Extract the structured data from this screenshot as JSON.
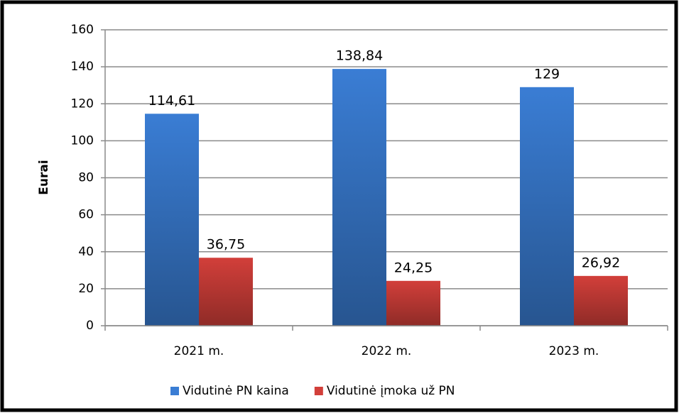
{
  "chart_data": {
    "type": "bar",
    "y_label": "Eurai",
    "categories": [
      "2021 m.",
      "2022 m.",
      "2023 m."
    ],
    "series": [
      {
        "name": "Vidutinė PN kaina",
        "color": "#3a7dd4",
        "values": [
          114.61,
          138.84,
          129
        ],
        "value_labels": [
          "114,61",
          "138,84",
          "129"
        ]
      },
      {
        "name": "Vidutinė įmoka už PN",
        "color": "#d23f3a",
        "values": [
          36.75,
          24.25,
          26.92
        ],
        "value_labels": [
          "36,75",
          "24,25",
          "26,92"
        ]
      }
    ],
    "ylim": [
      0,
      160
    ],
    "yticks": [
      0,
      20,
      40,
      60,
      80,
      100,
      120,
      140,
      160
    ],
    "grid": true,
    "legend": "bottom"
  }
}
